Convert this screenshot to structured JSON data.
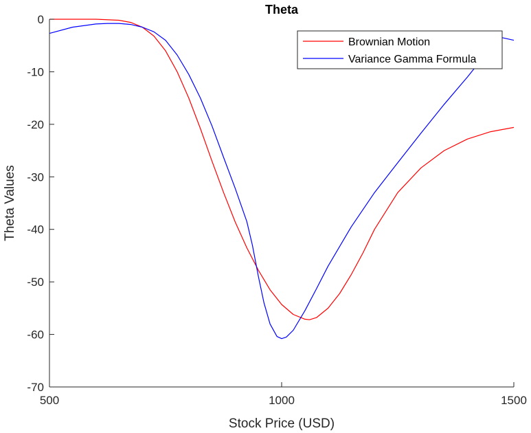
{
  "chart_data": {
    "type": "line",
    "title": "Theta",
    "xlabel": "Stock Price (USD)",
    "ylabel": "Theta Values",
    "xlim": [
      500,
      1500
    ],
    "ylim": [
      -70,
      0
    ],
    "xticks": [
      500,
      1000,
      1500
    ],
    "yticks": [
      0,
      -10,
      -20,
      -30,
      -40,
      -50,
      -60,
      -70
    ],
    "grid": false,
    "legend_position": "top-right",
    "series": [
      {
        "name": "Brownian Motion",
        "color": "#ff0000",
        "x": [
          500,
          550,
          600,
          650,
          675,
          700,
          725,
          750,
          775,
          800,
          825,
          850,
          875,
          900,
          925,
          950,
          975,
          1000,
          1025,
          1050,
          1060,
          1075,
          1100,
          1125,
          1150,
          1175,
          1200,
          1250,
          1300,
          1350,
          1400,
          1450,
          1500
        ],
        "y": [
          0,
          0,
          0,
          -0.2,
          -0.6,
          -1.5,
          -3.2,
          -6.0,
          -10.0,
          -15.0,
          -20.8,
          -27.0,
          -33.0,
          -38.6,
          -43.5,
          -47.8,
          -51.5,
          -54.3,
          -56.2,
          -57.1,
          -57.2,
          -56.8,
          -55.0,
          -52.2,
          -48.6,
          -44.5,
          -40.0,
          -33.0,
          -28.3,
          -25.0,
          -22.8,
          -21.4,
          -20.6
        ]
      },
      {
        "name": "Variance Gamma Formula",
        "color": "#0000ff",
        "x": [
          500,
          550,
          600,
          625,
          650,
          675,
          700,
          725,
          750,
          775,
          800,
          825,
          850,
          875,
          900,
          925,
          937,
          950,
          962,
          975,
          990,
          1000,
          1010,
          1025,
          1050,
          1075,
          1100,
          1150,
          1200,
          1250,
          1300,
          1350,
          1400,
          1450,
          1475,
          1500
        ],
        "y": [
          -2.7,
          -1.5,
          -0.9,
          -0.8,
          -0.8,
          -1.0,
          -1.5,
          -2.4,
          -4.0,
          -6.8,
          -10.5,
          -15.0,
          -20.3,
          -26.3,
          -32.2,
          -38.5,
          -43.0,
          -49.0,
          -54.0,
          -58.0,
          -60.4,
          -60.8,
          -60.5,
          -59.2,
          -55.5,
          -51.3,
          -47.0,
          -39.5,
          -33.0,
          -27.3,
          -21.7,
          -16.2,
          -11.0,
          -5.5,
          -3.5,
          -4.0
        ]
      }
    ]
  }
}
